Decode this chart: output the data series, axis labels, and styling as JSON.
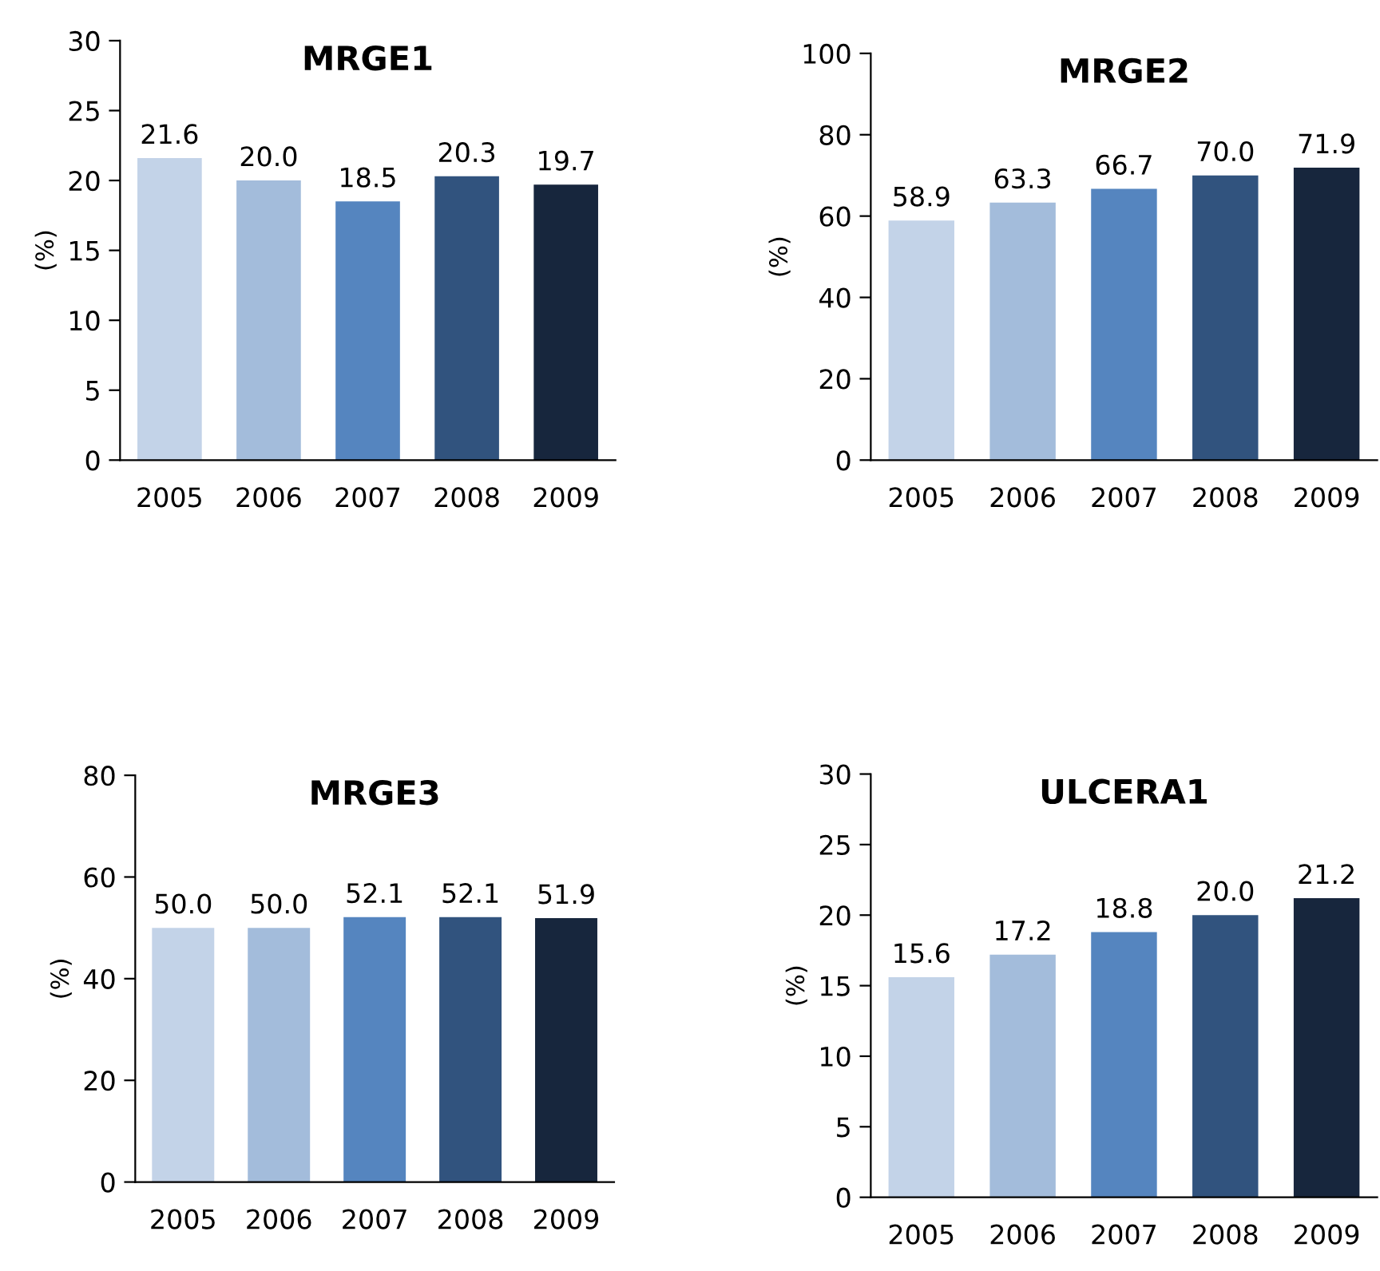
{
  "chart_data": [
    {
      "type": "bar",
      "title": "MRGE1",
      "ylabel": "(%)",
      "categories": [
        "2005",
        "2006",
        "2007",
        "2008",
        "2009"
      ],
      "values": [
        21.6,
        20.0,
        18.5,
        20.3,
        19.7
      ],
      "value_labels": [
        "21.6",
        "20.0",
        "18.5",
        "20.3",
        "19.7"
      ],
      "colors": [
        "#c3d3e8",
        "#a3bcdb",
        "#5585bf",
        "#31537e",
        "#17263d"
      ],
      "ylim": [
        0,
        30
      ],
      "yticks": [
        0,
        5,
        10,
        15,
        20,
        25,
        30
      ],
      "grid": false,
      "legend": false
    },
    {
      "type": "bar",
      "title": "MRGE2",
      "ylabel": "(%)",
      "categories": [
        "2005",
        "2006",
        "2007",
        "2008",
        "2009"
      ],
      "values": [
        58.9,
        63.3,
        66.7,
        70.0,
        71.9
      ],
      "value_labels": [
        "58.9",
        "63.3",
        "66.7",
        "70.0",
        "71.9"
      ],
      "colors": [
        "#c3d3e8",
        "#a3bcdb",
        "#5585bf",
        "#31537e",
        "#17263d"
      ],
      "ylim": [
        0,
        100
      ],
      "yticks": [
        0,
        20,
        40,
        60,
        80,
        100
      ],
      "grid": false,
      "legend": false
    },
    {
      "type": "bar",
      "title": "MRGE3",
      "ylabel": "(%)",
      "categories": [
        "2005",
        "2006",
        "2007",
        "2008",
        "2009"
      ],
      "values": [
        50.0,
        50.0,
        52.1,
        52.1,
        51.9
      ],
      "value_labels": [
        "50.0",
        "50.0",
        "52.1",
        "52.1",
        "51.9"
      ],
      "colors": [
        "#c3d3e8",
        "#a3bcdb",
        "#5585bf",
        "#31537e",
        "#17263d"
      ],
      "ylim": [
        0,
        80
      ],
      "yticks": [
        0,
        20,
        40,
        60,
        80
      ],
      "grid": false,
      "legend": false
    },
    {
      "type": "bar",
      "title": "ULCERA1",
      "ylabel": "(%)",
      "categories": [
        "2005",
        "2006",
        "2007",
        "2008",
        "2009"
      ],
      "values": [
        15.6,
        17.2,
        18.8,
        20.0,
        21.2
      ],
      "value_labels": [
        "15.6",
        "17.2",
        "18.8",
        "20.0",
        "21.2"
      ],
      "colors": [
        "#c3d3e8",
        "#a3bcdb",
        "#5585bf",
        "#31537e",
        "#17263d"
      ],
      "ylim": [
        0,
        30
      ],
      "yticks": [
        0,
        5,
        10,
        15,
        20,
        25,
        30
      ],
      "grid": false,
      "legend": false
    }
  ]
}
